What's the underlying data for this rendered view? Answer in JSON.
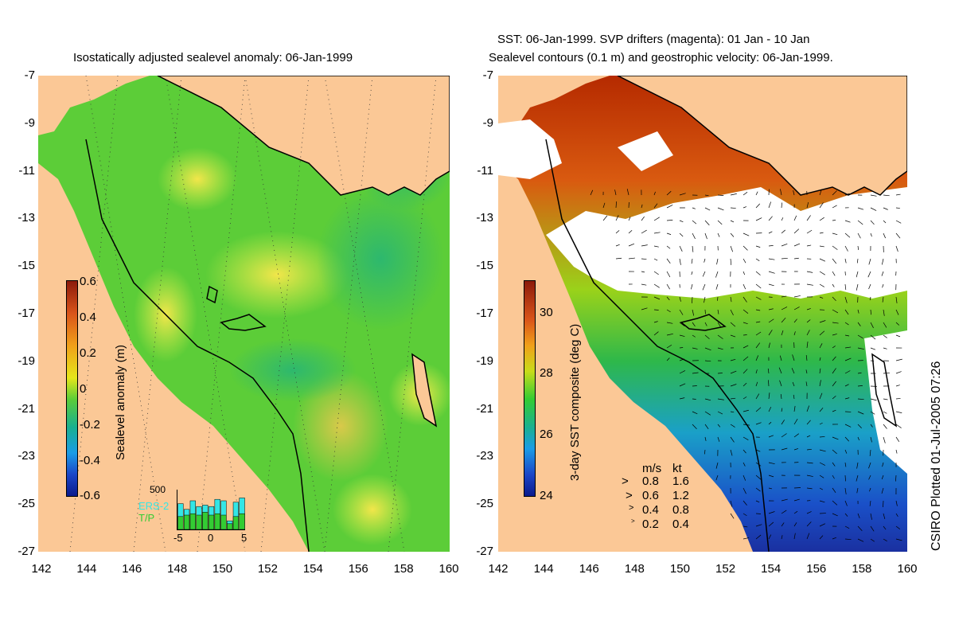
{
  "left_panel": {
    "title": "Isostatically adjusted sealevel anomaly: 06-Jan-1999",
    "colorbar_label": "Sealevel anomaly (m)",
    "colorbar_ticks": [
      "0.6",
      "0.4",
      "0.2",
      "0",
      "-0.2",
      "-0.4",
      "-0.6"
    ],
    "inset": {
      "ymax_label": "500",
      "series": [
        {
          "name": "ERS-2",
          "color": "#33e6e6"
        },
        {
          "name": "T/P",
          "color": "#33cc33"
        }
      ],
      "x_ticks": [
        "-5",
        "0",
        "5"
      ],
      "bars_ers2": [
        180,
        140,
        200,
        160,
        170,
        160,
        210,
        200,
        60,
        190,
        220
      ],
      "bars_tp": [
        90,
        100,
        110,
        100,
        120,
        100,
        110,
        100,
        40,
        90,
        110
      ]
    }
  },
  "right_panel": {
    "title_line1": "SST: 06-Jan-1999. SVP drifters (magenta): 01 Jan - 10 Jan",
    "title_line2": "Sealevel contours (0.1 m) and geostrophic velocity: 06-Jan-1999.",
    "colorbar_label": "3-day SST composite (deg C)",
    "colorbar_ticks": [
      "30",
      "28",
      "26",
      "24"
    ],
    "velocity_legend": {
      "header_ms": "m/s",
      "header_kt": "kt",
      "rows": [
        {
          "ms": "0.8",
          "kt": "1.6"
        },
        {
          "ms": "0.6",
          "kt": "1.2"
        },
        {
          "ms": "0.4",
          "kt": "0.8"
        },
        {
          "ms": "0.2",
          "kt": "0.4"
        }
      ]
    }
  },
  "axes": {
    "y_ticks": [
      "-7",
      "-9",
      "-11",
      "-13",
      "-15",
      "-17",
      "-19",
      "-21",
      "-23",
      "-25",
      "-27"
    ],
    "x_ticks": [
      "142",
      "144",
      "146",
      "148",
      "150",
      "152",
      "154",
      "156",
      "158",
      "160"
    ]
  },
  "credit": "CSIRO Plotted 01-Jul-2005 07:26",
  "colors": {
    "land": "#fbc896",
    "sla_low": "#0a1a8c",
    "sla_mid": "#33cc33",
    "sla_high": "#8c1a0a",
    "sst_warm": "#b52a00",
    "cloud": "#ffffff"
  }
}
